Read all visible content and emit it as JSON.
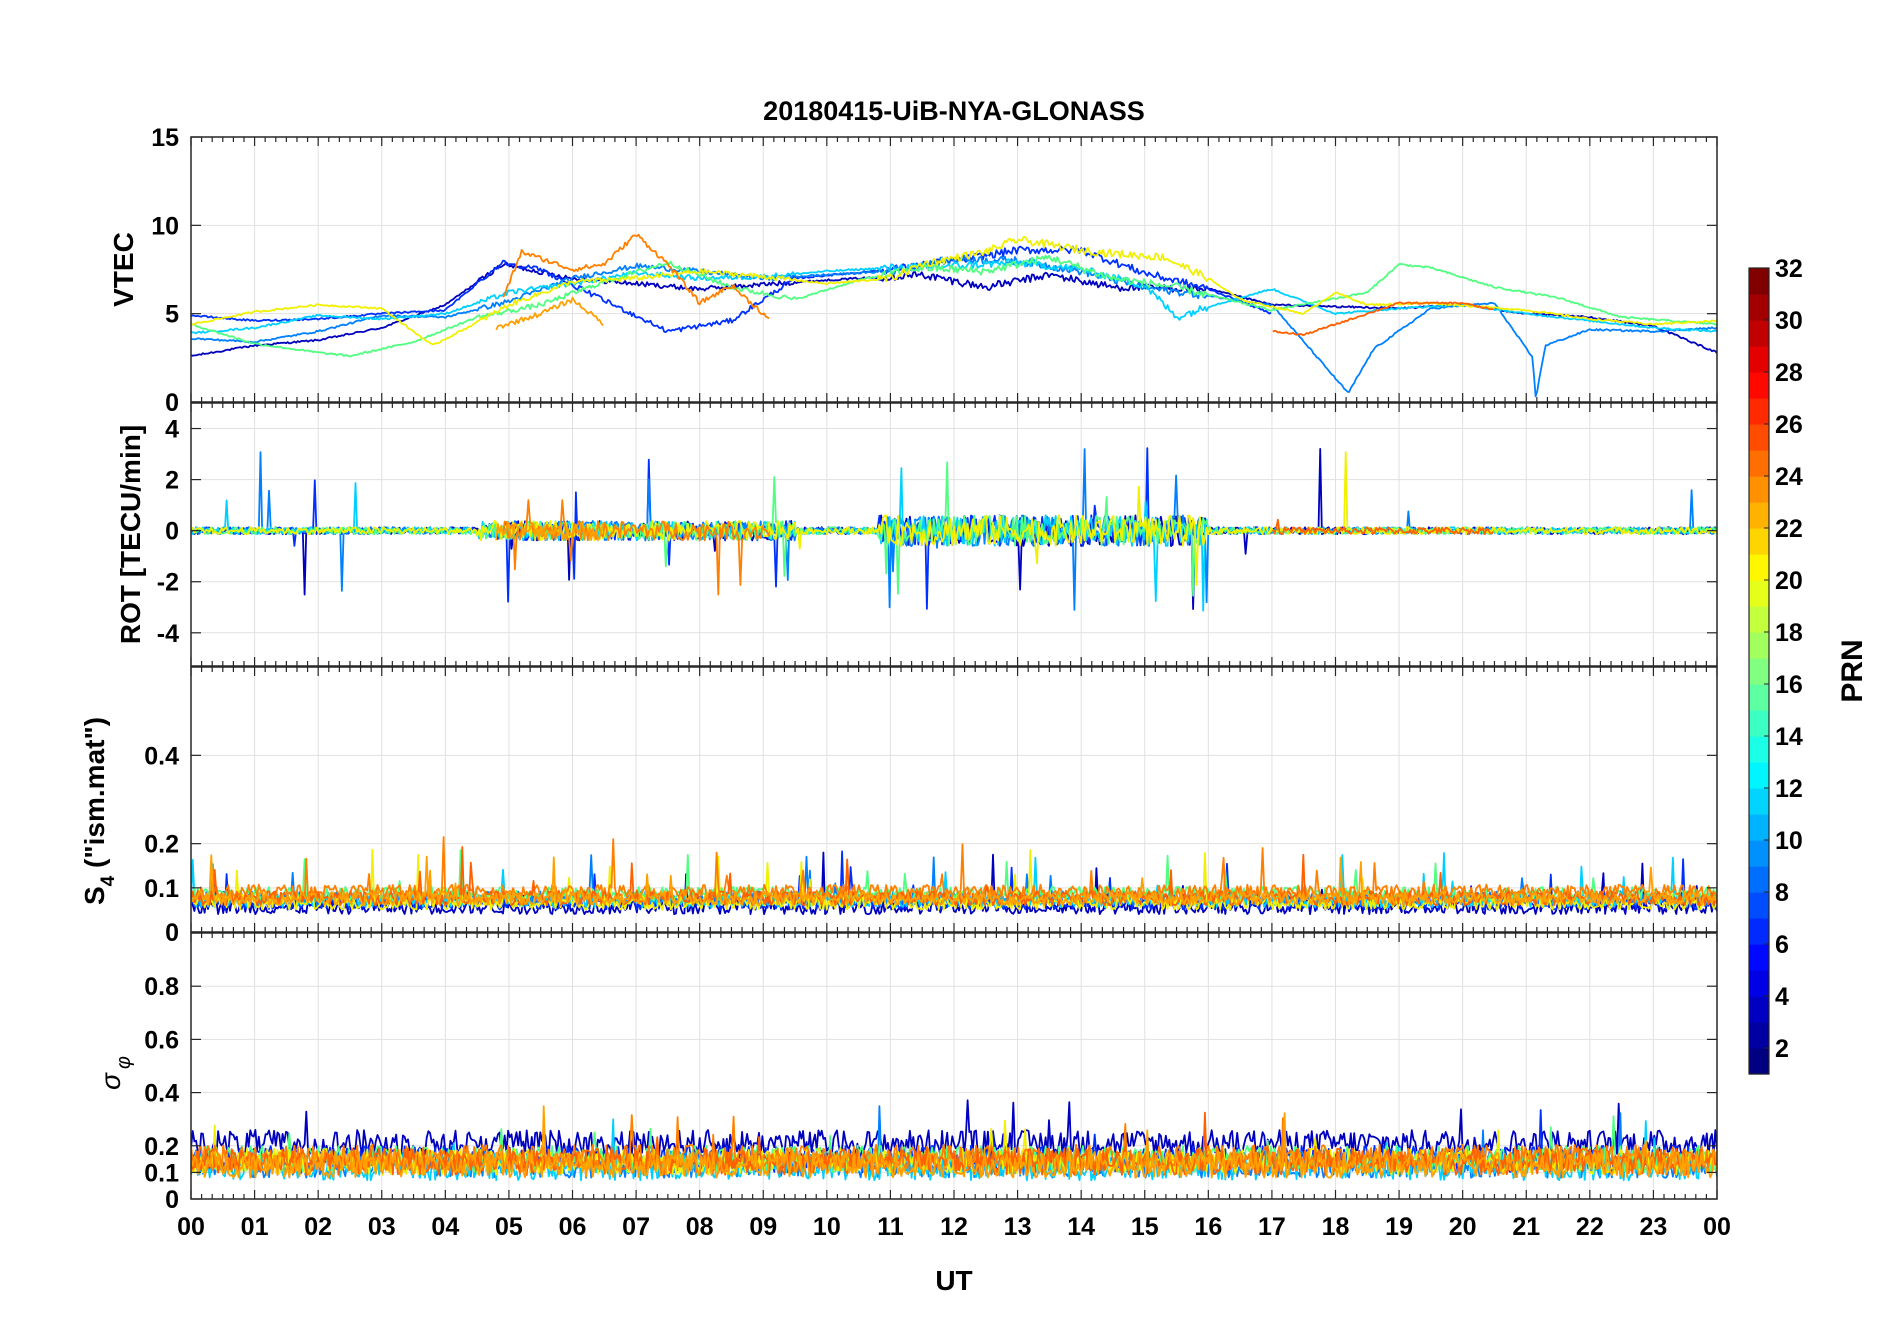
{
  "chart_data": {
    "type": "line",
    "title": "20180415-UiB-NYA-GLONASS",
    "xlabel": "UT",
    "x_ticks": [
      "00",
      "01",
      "02",
      "03",
      "04",
      "05",
      "06",
      "07",
      "08",
      "09",
      "10",
      "11",
      "12",
      "13",
      "14",
      "15",
      "16",
      "17",
      "18",
      "19",
      "20",
      "21",
      "22",
      "23",
      "00"
    ],
    "xlim": [
      0,
      24
    ],
    "panels": [
      {
        "id": "vtec",
        "ylabel": "VTEC",
        "ylim": [
          0,
          15
        ],
        "yticks": [
          0,
          5,
          10,
          15
        ],
        "ytick_labels": [
          "0",
          "5",
          "10",
          "15"
        ],
        "baseline": 5,
        "noise": 0.25
      },
      {
        "id": "rot",
        "ylabel": "ROT [TECU/min]",
        "ylim": [
          -5.3,
          5
        ],
        "yticks": [
          -4,
          -2,
          0,
          2,
          4
        ],
        "ytick_labels": [
          "-4",
          "-2",
          "0",
          "2",
          "4"
        ],
        "baseline": 0,
        "noise": 0.3
      },
      {
        "id": "s4",
        "ylabel_main": "S",
        "ylabel_sub": "4",
        "ylabel_rest": " (\"ism.mat\")",
        "ylim": [
          0,
          0.6
        ],
        "yticks": [
          0,
          0.1,
          0.2,
          0.4
        ],
        "ytick_labels": [
          "0",
          "0.1",
          "0.2",
          "0.4"
        ],
        "baseline": 0.07,
        "noise": 0.02
      },
      {
        "id": "sigma",
        "ylabel_main": "σ",
        "ylabel_sub": "φ",
        "ylim": [
          0,
          1
        ],
        "yticks": [
          0,
          0.1,
          0.2,
          0.4,
          0.6,
          0.8
        ],
        "ytick_labels": [
          "0",
          "0.1",
          "0.2",
          "0.4",
          "0.6",
          "0.8"
        ],
        "baseline": 0.15,
        "noise": 0.04
      }
    ],
    "colorbar": {
      "label": "PRN",
      "range": [
        1,
        32
      ],
      "ticks": [
        2,
        4,
        6,
        8,
        10,
        12,
        14,
        16,
        18,
        20,
        22,
        24,
        26,
        28,
        30,
        32
      ],
      "tick_labels": [
        "2",
        "4",
        "6",
        "8",
        "10",
        "12",
        "14",
        "16",
        "18",
        "20",
        "22",
        "24",
        "26",
        "28",
        "30",
        "32"
      ],
      "colormap": "jet"
    },
    "series": [
      {
        "prn": 2,
        "color": "#0000bf",
        "vtec": [
          [
            0,
            2.6
          ],
          [
            1,
            3.2
          ],
          [
            2,
            3.5
          ],
          [
            3,
            4.2
          ],
          [
            4,
            5.5
          ],
          [
            4.9,
            7.8
          ],
          [
            6,
            7.0
          ],
          [
            8,
            6.4
          ],
          [
            10,
            6.9
          ],
          [
            11.5,
            7.2
          ],
          [
            12.5,
            6.5
          ],
          [
            13.5,
            7.2
          ],
          [
            14.5,
            6.5
          ],
          [
            16,
            6.4
          ],
          [
            17,
            5.5
          ],
          [
            19,
            5.3
          ],
          [
            20,
            5.5
          ],
          [
            21,
            5.0
          ],
          [
            22,
            4.8
          ],
          [
            23,
            4.3
          ],
          [
            24,
            2.8
          ]
        ],
        "s4_level": 0.05,
        "sigma_level": 0.21
      },
      {
        "prn": 5,
        "color": "#0030ff",
        "vtec": [
          [
            0,
            4.9
          ],
          [
            1,
            4.6
          ],
          [
            2,
            4.7
          ],
          [
            3,
            5.0
          ],
          [
            4,
            5.2
          ],
          [
            4.9,
            7.9
          ],
          [
            5.5,
            7.5
          ],
          [
            7.5,
            4.0
          ],
          [
            8.5,
            4.6
          ],
          [
            9.5,
            7.0
          ],
          [
            11,
            7.5
          ],
          [
            12,
            8.0
          ],
          [
            13,
            8.6
          ],
          [
            14,
            8.6
          ],
          [
            15,
            7.3
          ],
          [
            16,
            6.4
          ],
          [
            17,
            5.0
          ]
        ],
        "s4_level": 0.06,
        "sigma_level": 0.15
      },
      {
        "prn": 8,
        "color": "#0080ff",
        "vtec": [
          [
            0,
            3.6
          ],
          [
            1,
            3.4
          ],
          [
            2,
            4.0
          ],
          [
            3,
            4.9
          ],
          [
            4,
            4.8
          ],
          [
            5,
            5.7
          ],
          [
            6,
            7.0
          ],
          [
            7,
            7.7
          ],
          [
            8,
            7.4
          ],
          [
            9,
            7.0
          ],
          [
            10,
            7.2
          ],
          [
            11,
            7.4
          ],
          [
            12,
            8.1
          ],
          [
            13,
            8.0
          ],
          [
            14,
            7.4
          ],
          [
            15,
            6.5
          ],
          [
            16,
            6.0
          ],
          [
            17,
            5.5
          ],
          [
            18.2,
            0.5
          ],
          [
            18.6,
            3.0
          ],
          [
            19.5,
            5.3
          ],
          [
            20.5,
            5.6
          ],
          [
            21.1,
            2.5
          ],
          [
            21.15,
            0.2
          ],
          [
            21.3,
            3.2
          ],
          [
            22,
            4.1
          ],
          [
            23,
            4.0
          ],
          [
            24,
            4.2
          ]
        ],
        "s4_level": 0.07,
        "sigma_level": 0.13
      },
      {
        "prn": 12,
        "color": "#00d0ff",
        "vtec": [
          [
            0,
            3.9
          ],
          [
            1,
            4.2
          ],
          [
            2,
            4.9
          ],
          [
            3,
            4.7
          ],
          [
            4,
            5.0
          ],
          [
            5,
            6.2
          ],
          [
            6,
            6.7
          ],
          [
            7,
            7.3
          ],
          [
            8,
            7.0
          ],
          [
            9,
            7.1
          ],
          [
            10,
            7.4
          ],
          [
            11,
            7.6
          ],
          [
            12,
            7.7
          ],
          [
            13,
            7.9
          ],
          [
            14,
            7.5
          ],
          [
            15,
            6.6
          ],
          [
            15.5,
            4.8
          ],
          [
            16,
            5.4
          ],
          [
            17,
            6.4
          ],
          [
            18,
            5.0
          ],
          [
            19,
            5.3
          ],
          [
            20,
            5.5
          ],
          [
            21,
            5.0
          ],
          [
            22,
            4.6
          ],
          [
            23,
            4.2
          ],
          [
            24,
            4.0
          ]
        ],
        "s4_level": 0.065,
        "sigma_level": 0.12
      },
      {
        "prn": 16,
        "color": "#50ff80",
        "vtec": [
          [
            0,
            4.4
          ],
          [
            1,
            3.3
          ],
          [
            2,
            2.8
          ],
          [
            2.5,
            2.6
          ],
          [
            3.5,
            3.4
          ],
          [
            4.5,
            4.8
          ],
          [
            5.5,
            5.5
          ],
          [
            6.5,
            6.8
          ],
          [
            7.5,
            7.9
          ],
          [
            8.5,
            6.5
          ],
          [
            9.5,
            5.8
          ],
          [
            10.5,
            6.9
          ],
          [
            11.5,
            7.6
          ],
          [
            12.5,
            7.4
          ],
          [
            13.5,
            8.2
          ],
          [
            14.5,
            7.0
          ],
          [
            15.5,
            6.5
          ],
          [
            17,
            5.2
          ],
          [
            18.5,
            6.2
          ],
          [
            19,
            7.8
          ],
          [
            19.5,
            7.6
          ],
          [
            20.5,
            6.5
          ],
          [
            21.5,
            5.9
          ],
          [
            22.5,
            4.8
          ],
          [
            24,
            4.4
          ]
        ],
        "s4_level": 0.08,
        "sigma_level": 0.15
      },
      {
        "prn": 20,
        "color": "#f0f000",
        "vtec": [
          [
            0,
            4.4
          ],
          [
            1,
            5.1
          ],
          [
            2,
            5.5
          ],
          [
            3,
            5.3
          ],
          [
            3.8,
            3.2
          ],
          [
            4.5,
            4.5
          ],
          [
            5,
            5.5
          ],
          [
            6,
            6.8
          ],
          [
            7,
            7.0
          ],
          [
            8,
            7.4
          ],
          [
            9,
            7.1
          ],
          [
            10,
            6.7
          ],
          [
            11,
            7.0
          ],
          [
            11.5,
            7.8
          ],
          [
            12.5,
            8.5
          ],
          [
            13,
            9.2
          ],
          [
            14,
            8.6
          ],
          [
            14.5,
            8.4
          ],
          [
            15.3,
            8.2
          ],
          [
            16,
            7.0
          ],
          [
            16.5,
            5.8
          ],
          [
            17.5,
            5.0
          ],
          [
            18,
            6.2
          ],
          [
            18.5,
            5.5
          ],
          [
            19.5,
            5.6
          ],
          [
            21,
            5.2
          ],
          [
            22,
            4.7
          ],
          [
            23,
            4.4
          ],
          [
            24,
            4.6
          ]
        ],
        "s4_level": 0.06,
        "sigma_level": 0.14
      },
      {
        "prn": 23,
        "color": "#ff8000",
        "vtec": [
          [
            4.9,
            5.8
          ],
          [
            5.2,
            8.5
          ],
          [
            6,
            7.5
          ],
          [
            6.5,
            7.8
          ],
          [
            7,
            9.5
          ],
          [
            7.5,
            7.8
          ],
          [
            8,
            5.6
          ],
          [
            8.5,
            6.6
          ],
          [
            9,
            5.0
          ],
          [
            9.1,
            4.6
          ]
        ],
        "s4_level": 0.085,
        "sigma_level": 0.155
      },
      {
        "prn": 24,
        "color": "#ff6000",
        "vtec": [
          [
            17,
            4.0
          ],
          [
            17.5,
            3.8
          ],
          [
            18.5,
            5.0
          ],
          [
            19,
            5.6
          ],
          [
            20,
            5.6
          ],
          [
            20.5,
            5.2
          ]
        ],
        "s4_level": 0.07,
        "sigma_level": 0.14
      },
      {
        "prn": 22,
        "color": "#ffa000",
        "vtec": [
          [
            4.8,
            4.2
          ],
          [
            5.5,
            5.0
          ],
          [
            6.0,
            5.8
          ],
          [
            6.5,
            4.4
          ]
        ],
        "s4_level": 0.07,
        "sigma_level": 0.13
      }
    ]
  }
}
